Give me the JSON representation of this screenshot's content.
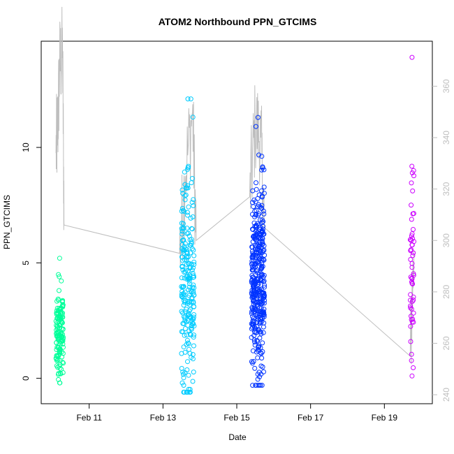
{
  "chart_data": {
    "type": "scatter",
    "title": "ATOM2 Northbound PPN_GTCIMS",
    "xlabel": "Date",
    "ylabel": "PPN_GTCIMS",
    "x_unit": "date (February)",
    "x_ticks": [
      {
        "label": "Feb 11",
        "day": 11
      },
      {
        "label": "Feb 13",
        "day": 13
      },
      {
        "label": "Feb 15",
        "day": 15
      },
      {
        "label": "Feb 17",
        "day": 17
      },
      {
        "label": "Feb 19",
        "day": 19
      }
    ],
    "xlim_day": [
      9.7,
      20.3
    ],
    "ylim": [
      -1.1,
      14.6
    ],
    "y_ticks": [
      0,
      5,
      10
    ],
    "y2_ticks": [
      240,
      260,
      280,
      300,
      320,
      340,
      360
    ],
    "y2lim": [
      236.5,
      377.5
    ],
    "grid": false,
    "legend": "none",
    "point_colors_by_cluster": [
      "#00ff99",
      "#00ccff",
      "#0033ff",
      "#cc00ff"
    ],
    "line_color": "#bebebe",
    "series": [
      {
        "cluster": 1,
        "day_range": [
          10.1,
          10.3
        ],
        "approx_count": 140,
        "y_range": [
          -0.2,
          5.2
        ],
        "y_center": 1.9
      },
      {
        "cluster": 2,
        "day_range": [
          13.5,
          13.85
        ],
        "approx_count": 230,
        "y_range": [
          -0.6,
          12.1
        ],
        "y_center": 4.4
      },
      {
        "cluster": 3,
        "day_range": [
          15.4,
          15.75
        ],
        "approx_count": 380,
        "y_range": [
          -0.3,
          11.3
        ],
        "y_center": 4.0
      },
      {
        "cluster": 4,
        "day_range": [
          19.7,
          19.8
        ],
        "approx_count": 55,
        "y_range": [
          0.1,
          13.9
        ],
        "y_center": 5.0
      }
    ],
    "secondary_line_points": [
      {
        "day": 10.1,
        "y2": 334
      },
      {
        "day": 10.15,
        "y2": 345
      },
      {
        "day": 10.2,
        "y2": 368
      },
      {
        "day": 10.28,
        "y2": 373
      },
      {
        "day": 10.32,
        "y2": 306
      },
      {
        "day": 13.45,
        "y2": 295
      },
      {
        "day": 13.6,
        "y2": 325
      },
      {
        "day": 13.8,
        "y2": 350
      },
      {
        "day": 13.9,
        "y2": 300
      },
      {
        "day": 15.35,
        "y2": 317
      },
      {
        "day": 15.5,
        "y2": 345
      },
      {
        "day": 15.65,
        "y2": 340
      },
      {
        "day": 15.75,
        "y2": 305
      },
      {
        "day": 19.7,
        "y2": 255
      },
      {
        "day": 19.8,
        "y2": 296
      }
    ]
  }
}
